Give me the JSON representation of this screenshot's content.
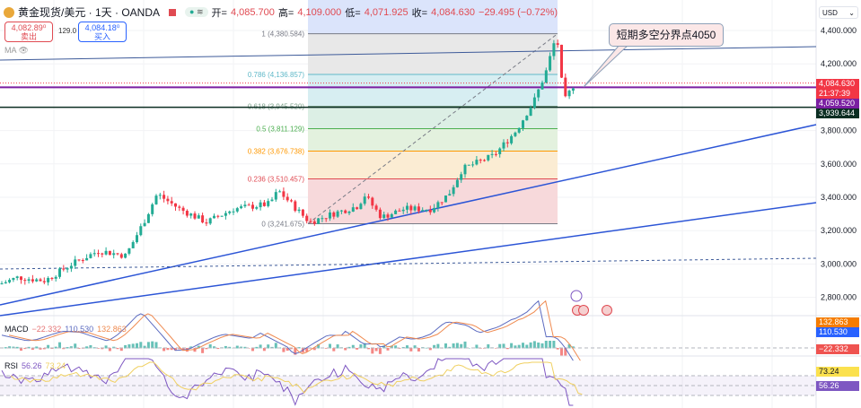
{
  "header": {
    "symbol": "黄金现货/美元 · 1天 · OANDA",
    "open_label": "开=",
    "open": "4,085.700",
    "high_label": "高=",
    "high": "4,109.000",
    "low_label": "低=",
    "low": "4,071.925",
    "close_label": "收=",
    "close": "4,084.630",
    "change": "−29.495 (−0.72%)",
    "pill": "≋"
  },
  "quote": {
    "sell_price": "4,082.89⁰",
    "sell_label": "卖出",
    "spread": "129.0",
    "buy_price": "4,084.18⁰",
    "buy_label": "买入"
  },
  "ma_label": "MA",
  "currency": "USD",
  "annotation": "短期多空分界点4050",
  "price_tags": {
    "last": "4,084.630",
    "countdown": "21:37:39",
    "purple": "4,059.520",
    "black": "3,939.644"
  },
  "macd": {
    "label": "MACD",
    "hist": "−22.332",
    "macd": "110.530",
    "signal": "132.863"
  },
  "rsi": {
    "label": "RSI",
    "value": "56.26",
    "ma": "73.24"
  },
  "colors": {
    "up": "#22ab94",
    "down": "#f23645",
    "trend": "#2c55d6",
    "purple": "#7b1fa2",
    "accent": "#2962ff"
  },
  "chart_data": {
    "type": "candlestick",
    "y_ticks": [
      "4,400.000",
      "4,200.000",
      "3,800.000",
      "3,600.000",
      "3,400.000",
      "3,200.000",
      "3,000.000",
      "2,800.000"
    ],
    "y_tick_values": [
      4400,
      4200,
      3800,
      3600,
      3400,
      3200,
      3000,
      2800
    ],
    "ylim": [
      2730,
      4400
    ],
    "fib": [
      {
        "ratio": "1",
        "price": "4,380.584",
        "v": 4380.584,
        "color": "#787b86"
      },
      {
        "ratio": "0.786",
        "price": "4,136.857",
        "v": 4136.857,
        "color": "#5fb8c8"
      },
      {
        "ratio": "0.618",
        "price": "3,945.520",
        "v": 3945.52,
        "color": "#7fa28c"
      },
      {
        "ratio": "0.5",
        "price": "3,811.129",
        "v": 3811.129,
        "color": "#4caf50"
      },
      {
        "ratio": "0.382",
        "price": "3,676.738",
        "v": 3676.738,
        "color": "#ff9800"
      },
      {
        "ratio": "0.236",
        "price": "3,510.457",
        "v": 3510.457,
        "color": "#e04a52"
      },
      {
        "ratio": "0",
        "price": "3,241.675",
        "v": 3241.675,
        "color": "#787b86"
      }
    ],
    "price_path": [
      [
        0,
        2880
      ],
      [
        20,
        2920
      ],
      [
        50,
        2900
      ],
      [
        80,
        3000
      ],
      [
        110,
        3080
      ],
      [
        140,
        3050
      ],
      [
        160,
        3250
      ],
      [
        175,
        3420
      ],
      [
        200,
        3330
      ],
      [
        230,
        3250
      ],
      [
        260,
        3330
      ],
      [
        300,
        3360
      ],
      [
        310,
        3440
      ],
      [
        330,
        3330
      ],
      [
        345,
        3250
      ],
      [
        370,
        3300
      ],
      [
        400,
        3350
      ],
      [
        405,
        3420
      ],
      [
        425,
        3280
      ],
      [
        450,
        3330
      ],
      [
        480,
        3330
      ],
      [
        500,
        3420
      ],
      [
        515,
        3570
      ],
      [
        550,
        3650
      ],
      [
        575,
        3800
      ],
      [
        595,
        3980
      ],
      [
        608,
        4150
      ],
      [
        620,
        4380
      ],
      [
        628,
        3970
      ],
      [
        640,
        4084
      ]
    ],
    "horizontal_levels": [
      4059.52,
      3939.644,
      4084.63
    ]
  }
}
